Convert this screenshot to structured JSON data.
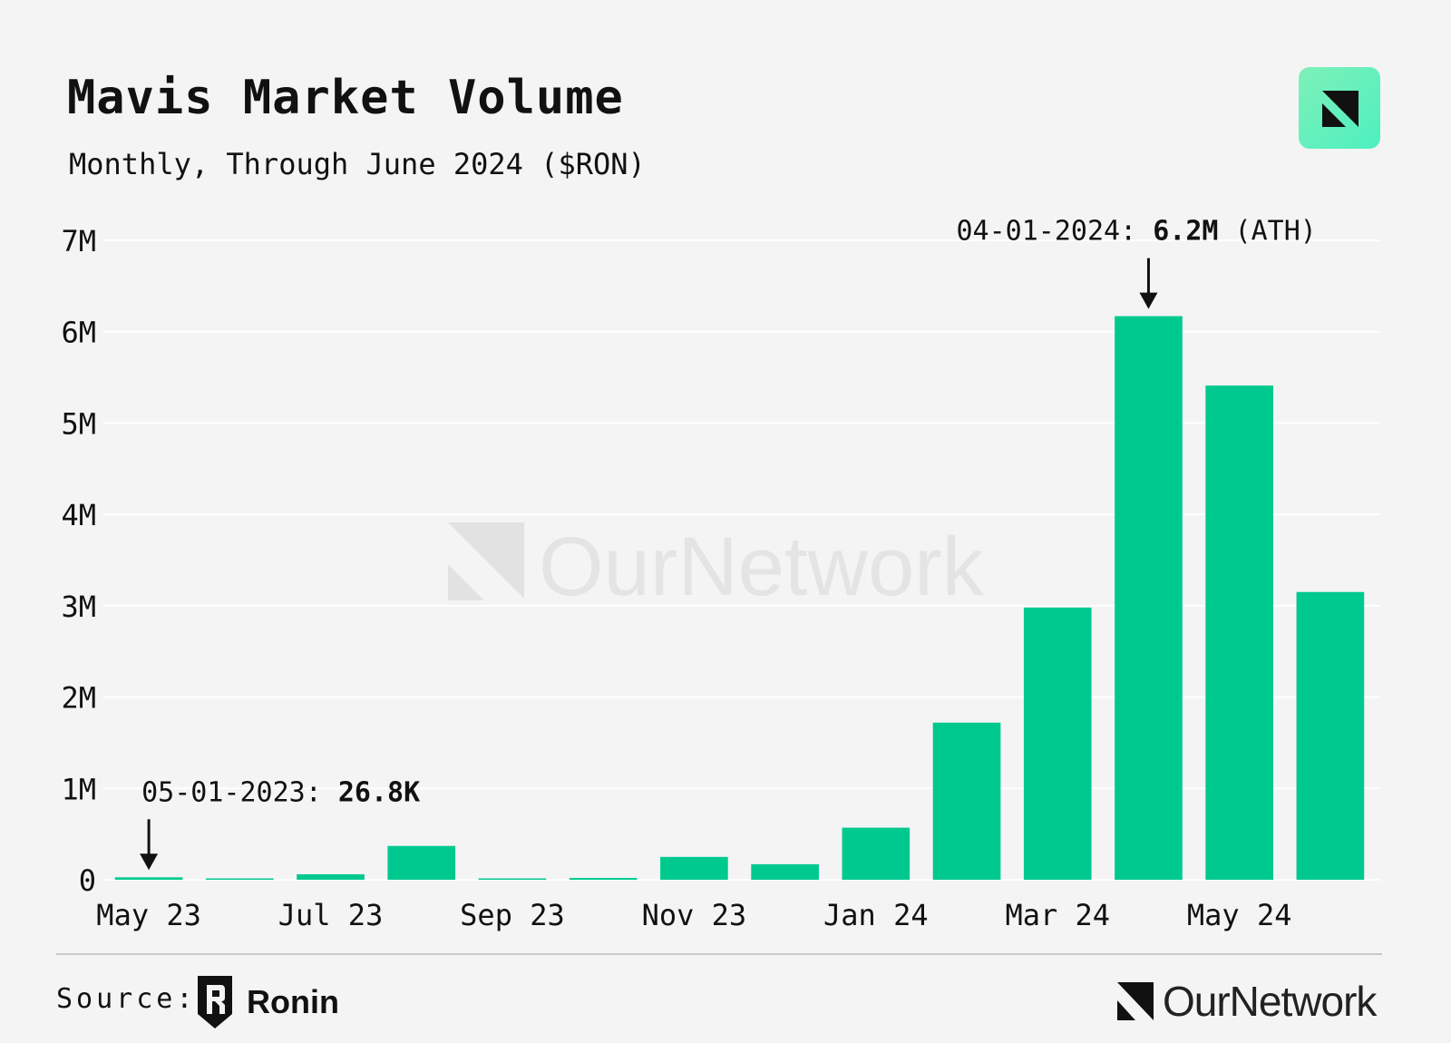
{
  "header": {
    "title": "Mavis Market Volume",
    "subtitle": "Monthly, Through June 2024 ($RON)"
  },
  "watermark": {
    "text": "OurNetwork",
    "icon": "ournetwork-logo-icon"
  },
  "footer": {
    "source_label": "Source:",
    "source_name": "Ronin",
    "source_icon": "ronin-logo-icon",
    "brand_name": "OurNetwork",
    "brand_icon": "ournetwork-logo-icon"
  },
  "colors": {
    "bar": "#00c98f",
    "background": "#f4f4f4",
    "grid": "#ffffff",
    "badge": "#6ff2c0"
  },
  "chart_data": {
    "type": "bar",
    "title": "Mavis Market Volume",
    "subtitle": "Monthly, Through June 2024 ($RON)",
    "xlabel": "",
    "ylabel": "",
    "categories": [
      "May 23",
      "Jun 23",
      "Jul 23",
      "Aug 23",
      "Sep 23",
      "Oct 23",
      "Nov 23",
      "Dec 23",
      "Jan 24",
      "Feb 24",
      "Mar 24",
      "Apr 24",
      "May 24",
      "Jun 24"
    ],
    "x_tick_labels": [
      "May 23",
      "Jul 23",
      "Sep 23",
      "Nov 23",
      "Jan 24",
      "Mar 24",
      "May 24"
    ],
    "values": [
      26800,
      5000,
      60000,
      370000,
      10000,
      20000,
      250000,
      170000,
      570000,
      1720000,
      2980000,
      6170000,
      5410000,
      3150000
    ],
    "ylim": [
      0,
      7000000
    ],
    "y_ticks": [
      0,
      1000000,
      2000000,
      3000000,
      4000000,
      5000000,
      6000000,
      7000000
    ],
    "y_tick_labels": [
      "0",
      "1M",
      "2M",
      "3M",
      "4M",
      "5M",
      "6M",
      "7M"
    ],
    "grid": true,
    "annotations": [
      {
        "category": "May 23",
        "prefix": "05-01-2023: ",
        "value_text": "26.8K",
        "suffix": ""
      },
      {
        "category": "Apr 24",
        "prefix": "04-01-2024: ",
        "value_text": "6.2M",
        "suffix": " (ATH)"
      }
    ]
  }
}
